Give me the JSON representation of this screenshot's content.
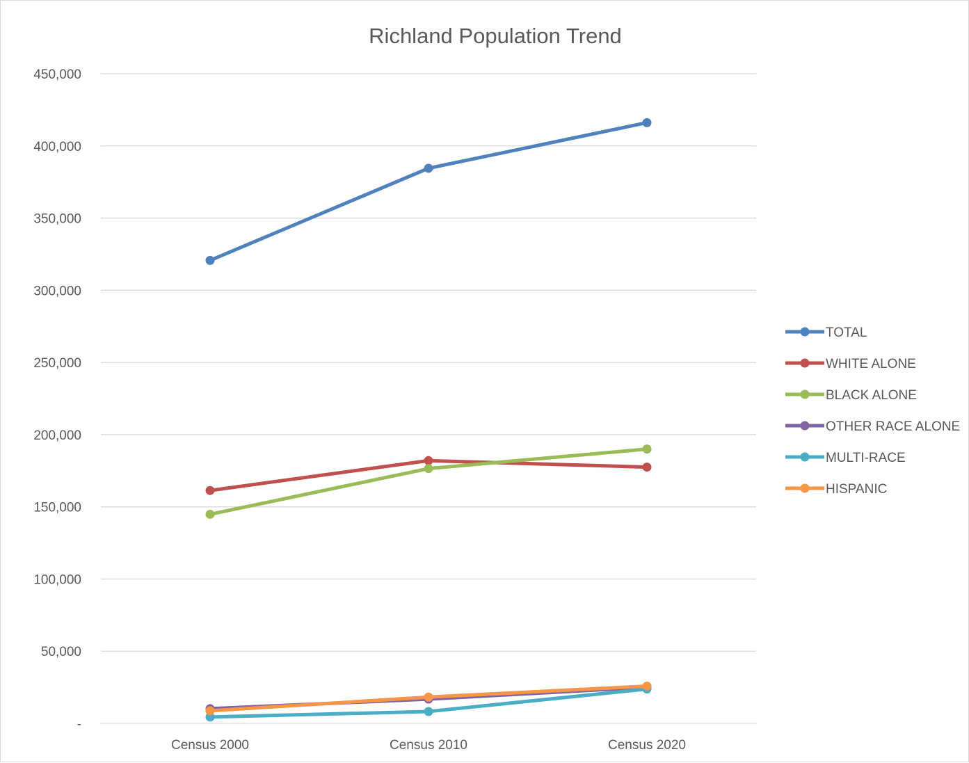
{
  "chart_data": {
    "type": "line",
    "title": "Richland Population Trend",
    "xlabel": "",
    "ylabel": "",
    "categories": [
      "Census 2000",
      "Census 2010",
      "Census 2020"
    ],
    "ylim": [
      0,
      450000
    ],
    "yticks": [
      0,
      50000,
      100000,
      150000,
      200000,
      250000,
      300000,
      350000,
      400000,
      450000
    ],
    "ytick_labels": [
      "-",
      "50,000",
      "100,000",
      "150,000",
      "200,000",
      "250,000",
      "300,000",
      "350,000",
      "400,000",
      "450,000"
    ],
    "grid": true,
    "legend_position": "right",
    "series": [
      {
        "name": "TOTAL",
        "color": "#4f81bd",
        "values": [
          320700,
          384500,
          416100
        ]
      },
      {
        "name": "WHITE ALONE",
        "color": "#c0504d",
        "values": [
          161300,
          182000,
          177500
        ]
      },
      {
        "name": "BLACK ALONE",
        "color": "#9bbb59",
        "values": [
          144800,
          176500,
          190000
        ]
      },
      {
        "name": "OTHER RACE ALONE",
        "color": "#8064a2",
        "values": [
          10200,
          16800,
          25000
        ]
      },
      {
        "name": "MULTI-RACE",
        "color": "#4bacc6",
        "values": [
          4400,
          8200,
          23800
        ]
      },
      {
        "name": "HISPANIC",
        "color": "#f79646",
        "values": [
          8700,
          18200,
          25800
        ]
      }
    ]
  }
}
